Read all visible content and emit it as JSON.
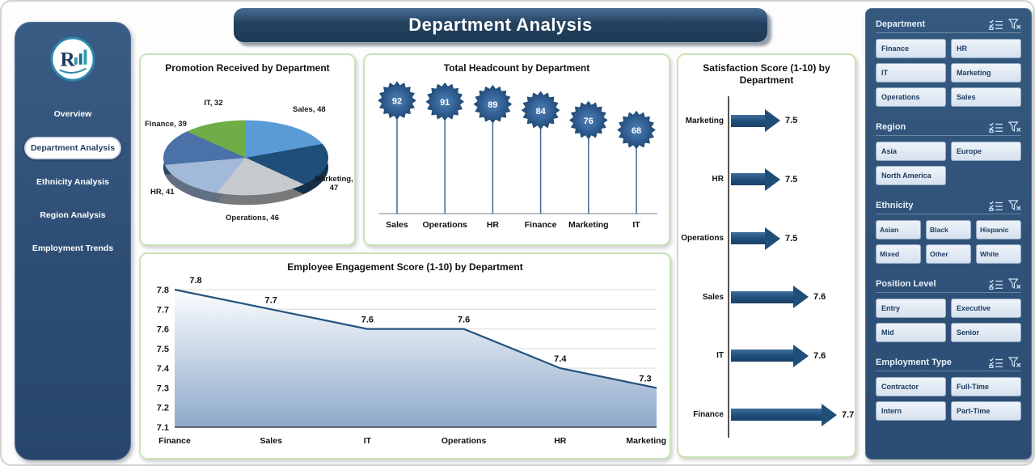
{
  "app": {
    "title": "Department Analysis"
  },
  "sidebar": {
    "items": [
      {
        "label": "Overview",
        "active": false
      },
      {
        "label": "Department Analysis",
        "active": true
      },
      {
        "label": "Ethnicity Analysis",
        "active": false
      },
      {
        "label": "Region Analysis",
        "active": false
      },
      {
        "label": "Employment Trends",
        "active": false
      }
    ]
  },
  "chart_data": [
    {
      "type": "pie",
      "style": "3d",
      "title": "Promotion Received by Department",
      "labels": [
        "Sales",
        "Marketing",
        "Operations",
        "HR",
        "Finance",
        "IT"
      ],
      "values": [
        48,
        47,
        46,
        41,
        39,
        32
      ],
      "colors": [
        "#5b9bd5",
        "#1f4e79",
        "#c6c9cd",
        "#a3b9d9",
        "#4a72a8",
        "#70ad47"
      ]
    },
    {
      "type": "bar",
      "subtype": "lollipop-burst",
      "title": "Total Headcount by Department",
      "categories": [
        "Sales",
        "Operations",
        "HR",
        "Finance",
        "Marketing",
        "IT"
      ],
      "values": [
        92,
        91,
        89,
        84,
        76,
        68
      ],
      "marker_color": "#2f5d91"
    },
    {
      "type": "bar",
      "subtype": "horizontal-arrow",
      "title": "Satisfaction Score (1-10) by Department",
      "categories": [
        "Marketing",
        "HR",
        "Operations",
        "Sales",
        "IT",
        "Finance"
      ],
      "values": [
        7.5,
        7.5,
        7.5,
        7.6,
        7.6,
        7.7
      ],
      "xlim": [
        7.38,
        7.75
      ],
      "bar_color": "#1f4e79"
    },
    {
      "type": "area",
      "title": "Employee Engagement Score (1-10) by Department",
      "categories": [
        "Finance",
        "Sales",
        "IT",
        "Operations",
        "HR",
        "Marketing"
      ],
      "values": [
        7.8,
        7.7,
        7.6,
        7.6,
        7.4,
        7.3
      ],
      "ylim": [
        7.1,
        7.8
      ],
      "yticks": [
        7.1,
        7.2,
        7.3,
        7.4,
        7.5,
        7.6,
        7.7,
        7.8
      ],
      "line_color": "#24527f",
      "grid": true
    }
  ],
  "slicers": [
    {
      "title": "Department",
      "columns": 2,
      "options": [
        "Finance",
        "HR",
        "IT",
        "Marketing",
        "Operations",
        "Sales"
      ]
    },
    {
      "title": "Region",
      "columns": 2,
      "options": [
        "Asia",
        "Europe",
        "North America"
      ]
    },
    {
      "title": "Ethnicity",
      "columns": 3,
      "options": [
        "Asian",
        "Black",
        "Hispanic",
        "Mixed",
        "Other",
        "White"
      ]
    },
    {
      "title": "Position Level",
      "columns": 2,
      "options": [
        "Entry",
        "Executive",
        "Mid",
        "Senior"
      ]
    },
    {
      "title": "Employment Type",
      "columns": 2,
      "options": [
        "Contractor",
        "Full-Time",
        "Intern",
        "Part-Time"
      ]
    }
  ],
  "theme": {
    "sidebar_bg": "#2f5178",
    "accent": "#1f4e79",
    "panel_border": "#c9e2b8",
    "arrow_color": "#1f4e79"
  }
}
